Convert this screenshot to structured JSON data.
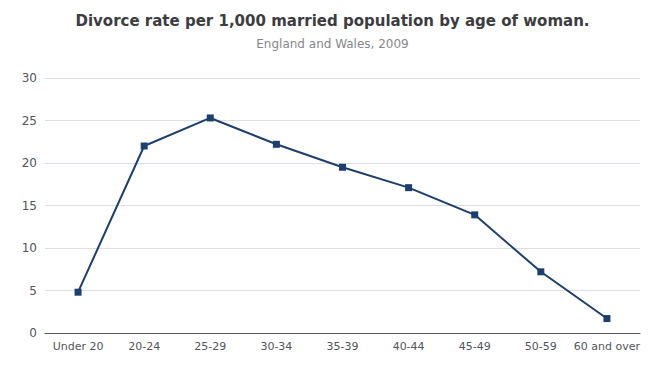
{
  "chart_data": {
    "type": "line",
    "title": "Divorce rate per 1,000 married population by age of woman.",
    "subtitle": "England and Wales, 2009",
    "categories": [
      "Under 20",
      "20-24",
      "25-29",
      "30-34",
      "35-39",
      "40-44",
      "45-49",
      "50-59",
      "60 and over"
    ],
    "values": [
      4.8,
      22.0,
      25.3,
      22.2,
      19.5,
      17.1,
      13.9,
      7.2,
      1.7
    ],
    "color": "#1C3F6E",
    "marker": "square",
    "ylim": [
      0,
      30
    ],
    "yticks": [
      0,
      5,
      10,
      15,
      20,
      25,
      30
    ],
    "grid": true
  }
}
